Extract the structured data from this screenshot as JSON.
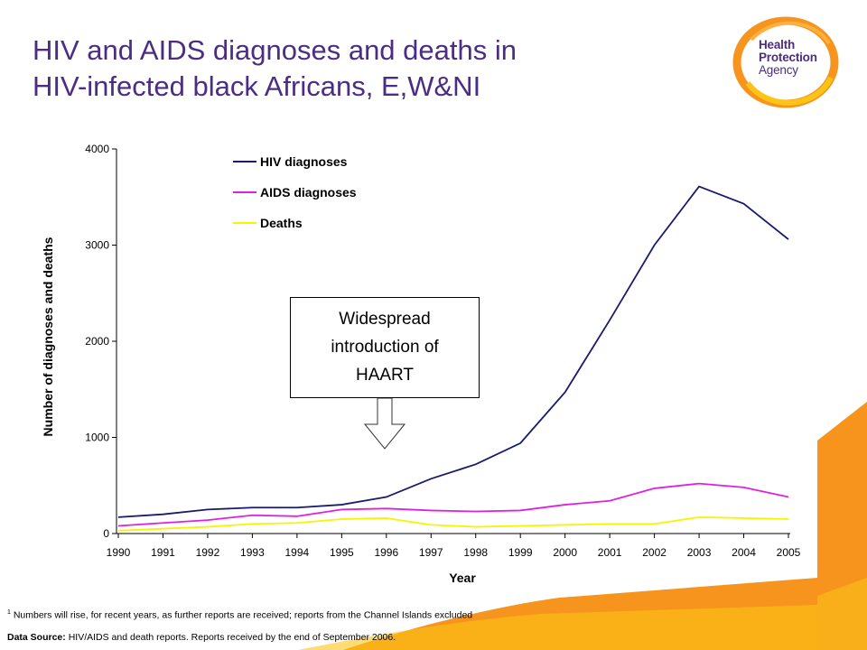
{
  "slide": {
    "title_line1": "HIV and AIDS diagnoses and deaths in",
    "title_line2": "HIV-infected black Africans, E,W&NI"
  },
  "logo": {
    "line1": "Health",
    "line2": "Protection",
    "line3": "Agency",
    "colors": {
      "ring_orange": "#f7941d",
      "ring_yellow": "#fcc516",
      "text_purple": "#4b2d83"
    }
  },
  "callout": {
    "line1": "Widespread",
    "line2": "introduction of",
    "line3": "HAART"
  },
  "footnote": {
    "marker": "1",
    "text": " Numbers will rise, for recent years, as further reports are received; reports from the Channel Islands excluded"
  },
  "data_source": {
    "label": "Data Source:",
    "text": " HIV/AIDS and death reports. Reports received by the end of September 2006."
  },
  "colors": {
    "title": "#4b2d83",
    "decor_orange": "#f7941d",
    "decor_yellow": "#fcc516"
  },
  "chart_data": {
    "type": "line",
    "xlabel": "Year",
    "ylabel": "Number of diagnoses and deaths",
    "ylim": [
      0,
      4000
    ],
    "yticks": [
      0,
      1000,
      2000,
      3000,
      4000
    ],
    "grid": false,
    "legend_position": "top-left",
    "x": [
      "1990",
      "1991",
      "1992",
      "1993",
      "1994",
      "1995",
      "1996",
      "1997",
      "1998",
      "1999",
      "2000",
      "2001",
      "2002",
      "2003",
      "2004",
      "2005"
    ],
    "series": [
      {
        "name": "HIV diagnoses",
        "color": "#1a1a6e",
        "values": [
          170,
          200,
          250,
          270,
          270,
          300,
          380,
          570,
          720,
          940,
          1470,
          2220,
          3000,
          3610,
          3430,
          3060
        ]
      },
      {
        "name": "AIDS diagnoses",
        "color": "#e020e0",
        "values": [
          80,
          110,
          140,
          190,
          180,
          250,
          260,
          240,
          230,
          240,
          300,
          340,
          470,
          520,
          480,
          380
        ]
      },
      {
        "name": "Deaths",
        "color": "#f5f500",
        "values": [
          30,
          50,
          70,
          100,
          110,
          150,
          160,
          90,
          70,
          80,
          90,
          100,
          100,
          170,
          160,
          150
        ]
      }
    ]
  }
}
